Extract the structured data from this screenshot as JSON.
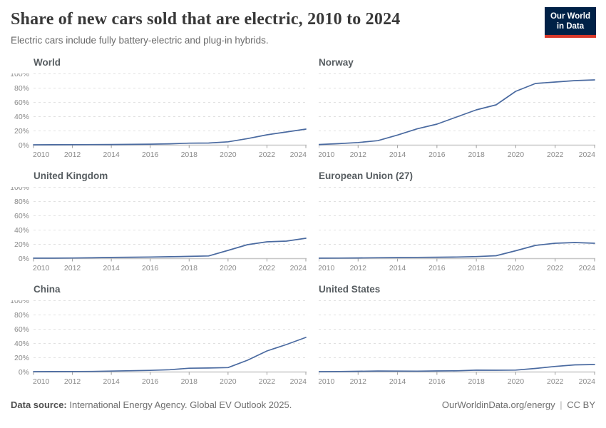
{
  "header": {
    "title": "Share of new cars sold that are electric, 2010 to 2024",
    "subtitle": "Electric cars include fully battery-electric and plug-in hybrids."
  },
  "logo": {
    "line1": "Our World",
    "line2": "in Data",
    "bg_color": "#002147",
    "accent_color": "#d7382a"
  },
  "footer": {
    "datasource_label": "Data source:",
    "datasource_text": "International Energy Agency. Global EV Outlook 2025.",
    "link": "OurWorldinData.org/energy",
    "separator": "|",
    "license": "CC BY"
  },
  "chart_data": {
    "type": "line",
    "title": "Share of new cars sold that are electric, 2010 to 2024",
    "layout": "small multiples grid 2 columns x 3 rows, y-axis labels on left column only",
    "grid": "horizontal dashed gridlines",
    "line_color": "#4a6aa0",
    "ylim": [
      0,
      100
    ],
    "yticks": [
      0,
      20,
      40,
      60,
      80,
      100
    ],
    "ytick_suffix": "%",
    "x": [
      2010,
      2011,
      2012,
      2013,
      2014,
      2015,
      2016,
      2017,
      2018,
      2019,
      2020,
      2021,
      2022,
      2023,
      2024
    ],
    "xticks": [
      2010,
      2012,
      2014,
      2016,
      2018,
      2020,
      2022,
      2024
    ],
    "series": [
      {
        "name": "World",
        "values": [
          0.01,
          0.06,
          0.16,
          0.26,
          0.42,
          0.64,
          0.9,
          1.4,
          2.3,
          2.5,
          4.2,
          8.7,
          14,
          18,
          22
        ]
      },
      {
        "name": "Norway",
        "values": [
          0.4,
          1.6,
          3.2,
          5.8,
          13.7,
          22.4,
          29,
          39,
          49,
          56,
          75,
          86,
          88,
          90,
          91
        ]
      },
      {
        "name": "United Kingdom",
        "values": [
          0.1,
          0.1,
          0.3,
          0.6,
          1.1,
          1.4,
          1.7,
          2.1,
          2.6,
          3.2,
          11,
          19,
          23,
          24,
          28
        ]
      },
      {
        "name": "European Union (27)",
        "values": [
          0.1,
          0.2,
          0.4,
          0.7,
          0.9,
          1.2,
          1.4,
          1.7,
          2.3,
          3.5,
          10.5,
          18,
          21,
          22,
          21
        ]
      },
      {
        "name": "China",
        "values": [
          0.01,
          0.1,
          0.2,
          0.3,
          0.8,
          1.3,
          1.8,
          2.7,
          4.8,
          5.1,
          5.7,
          16,
          29,
          38,
          48
        ]
      },
      {
        "name": "United States",
        "values": [
          0.02,
          0.2,
          0.5,
          0.9,
          0.8,
          0.7,
          1.0,
          1.2,
          2.1,
          2.0,
          2.2,
          4.5,
          7.3,
          9.5,
          10
        ]
      }
    ]
  }
}
